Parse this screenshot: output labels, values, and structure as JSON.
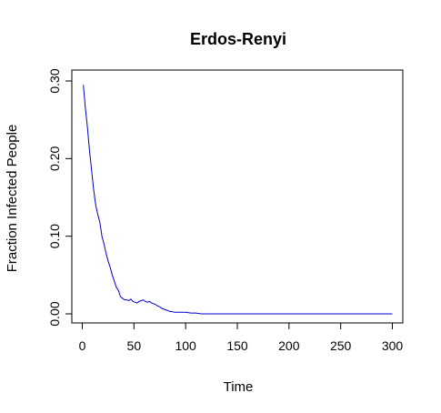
{
  "chart_data": {
    "type": "line",
    "title": "Erdos-Renyi",
    "xlabel": "Time",
    "ylabel": "Fraction Infected People",
    "xlim": [
      0,
      300
    ],
    "ylim": [
      0,
      0.3
    ],
    "x_ticks": [
      0,
      50,
      100,
      150,
      200,
      250,
      300
    ],
    "y_ticks": [
      0.0,
      0.1,
      0.2,
      0.3
    ],
    "x_tick_labels": [
      "0",
      "50",
      "100",
      "150",
      "200",
      "250",
      "300"
    ],
    "y_tick_labels": [
      "0.00",
      "0.10",
      "0.20",
      "0.30"
    ],
    "grid": false,
    "series": [
      {
        "color": "#0000cc",
        "x": [
          1,
          3,
          5,
          7,
          9,
          11,
          13,
          15,
          17,
          19,
          21,
          23,
          25,
          27,
          29,
          31,
          33,
          35,
          37,
          39,
          41,
          43,
          45,
          47,
          49,
          51,
          53,
          55,
          57,
          59,
          61,
          63,
          65,
          67,
          69,
          71,
          73,
          75,
          77,
          79,
          81,
          83,
          85,
          87,
          89,
          91,
          95,
          100,
          105,
          110,
          115,
          120,
          150,
          200,
          250,
          300
        ],
        "y": [
          0.295,
          0.265,
          0.24,
          0.21,
          0.185,
          0.16,
          0.14,
          0.128,
          0.118,
          0.1,
          0.09,
          0.078,
          0.068,
          0.06,
          0.05,
          0.042,
          0.034,
          0.03,
          0.022,
          0.02,
          0.018,
          0.018,
          0.017,
          0.019,
          0.016,
          0.015,
          0.014,
          0.016,
          0.017,
          0.018,
          0.016,
          0.015,
          0.016,
          0.014,
          0.013,
          0.012,
          0.01,
          0.009,
          0.007,
          0.006,
          0.005,
          0.004,
          0.003,
          0.003,
          0.002,
          0.002,
          0.002,
          0.002,
          0.001,
          0.001,
          0.0,
          0.0,
          0.0,
          0.0,
          0.0,
          0.0
        ]
      }
    ]
  }
}
